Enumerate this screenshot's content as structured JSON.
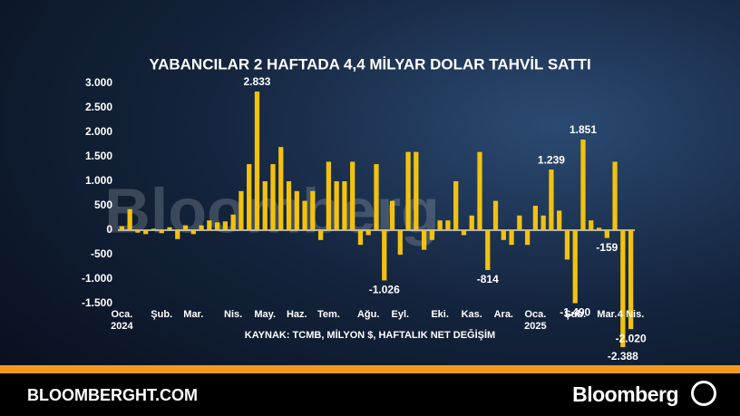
{
  "chart_data": {
    "type": "bar",
    "title": "YABANCILAR 2 HAFTADA 4,4 MİLYAR DOLAR TAHVİL SATTI",
    "source": "KAYNAK: TCMB, MİLYON $, HAFTALIK NET DEĞİŞİM",
    "watermark": "Bloomberg",
    "color": "#f2c20f",
    "categories": [
      "Oca. 2024",
      null,
      null,
      null,
      null,
      "Şub.",
      null,
      null,
      null,
      "Mar.",
      null,
      null,
      null,
      null,
      "Nis.",
      null,
      null,
      null,
      "May.",
      null,
      null,
      null,
      "Haz.",
      null,
      null,
      null,
      "Tem.",
      null,
      null,
      null,
      null,
      "Ağu.",
      null,
      null,
      null,
      "Eyl.",
      null,
      null,
      null,
      null,
      "Eki.",
      null,
      null,
      null,
      "Kas.",
      null,
      null,
      null,
      "Ara.",
      null,
      null,
      null,
      "Oca. 2025",
      null,
      null,
      null,
      null,
      "Şub.",
      null,
      null,
      null,
      "Mar.",
      null,
      null,
      "4 Nis."
    ],
    "values": [
      80,
      430,
      -50,
      -80,
      30,
      -60,
      60,
      -180,
      100,
      -80,
      100,
      200,
      160,
      180,
      320,
      800,
      1350,
      2833,
      1000,
      1350,
      1700,
      1000,
      800,
      600,
      800,
      -200,
      1400,
      1000,
      1000,
      1400,
      -300,
      -100,
      1350,
      -1026,
      600,
      -500,
      1600,
      1600,
      -400,
      -200,
      200,
      200,
      1000,
      -100,
      300,
      1600,
      -814,
      600,
      -200,
      -300,
      300,
      -300,
      500,
      300,
      1239,
      400,
      -600,
      -1490,
      1851,
      200,
      50,
      -159,
      1400,
      -2388,
      -2020
    ],
    "value_labels": [
      null,
      null,
      null,
      null,
      null,
      null,
      null,
      null,
      null,
      null,
      null,
      null,
      null,
      null,
      null,
      null,
      null,
      "2.833",
      null,
      null,
      null,
      null,
      null,
      null,
      null,
      null,
      null,
      null,
      null,
      null,
      null,
      null,
      null,
      "-1.026",
      null,
      null,
      null,
      null,
      null,
      null,
      null,
      null,
      null,
      null,
      null,
      null,
      "-814",
      null,
      null,
      null,
      null,
      null,
      null,
      null,
      "1.239",
      null,
      null,
      "-1.490",
      "1.851",
      null,
      null,
      "-159",
      null,
      "-2.388",
      "-2.020"
    ],
    "ylim": [
      -1500,
      3000
    ],
    "yticks": [
      {
        "value": 3000,
        "label": "3.000"
      },
      {
        "value": 2500,
        "label": "2.500"
      },
      {
        "value": 2000,
        "label": "2.000"
      },
      {
        "value": 1500,
        "label": "1.500"
      },
      {
        "value": 1000,
        "label": "1.000"
      },
      500,
      0,
      -500,
      {
        "value": -1000,
        "label": "-1.000"
      },
      {
        "value": -1500,
        "label": "-1.500"
      }
    ]
  },
  "footer": {
    "site": "BLOOMBERGHT.COM",
    "brand": "Bloomberg"
  }
}
